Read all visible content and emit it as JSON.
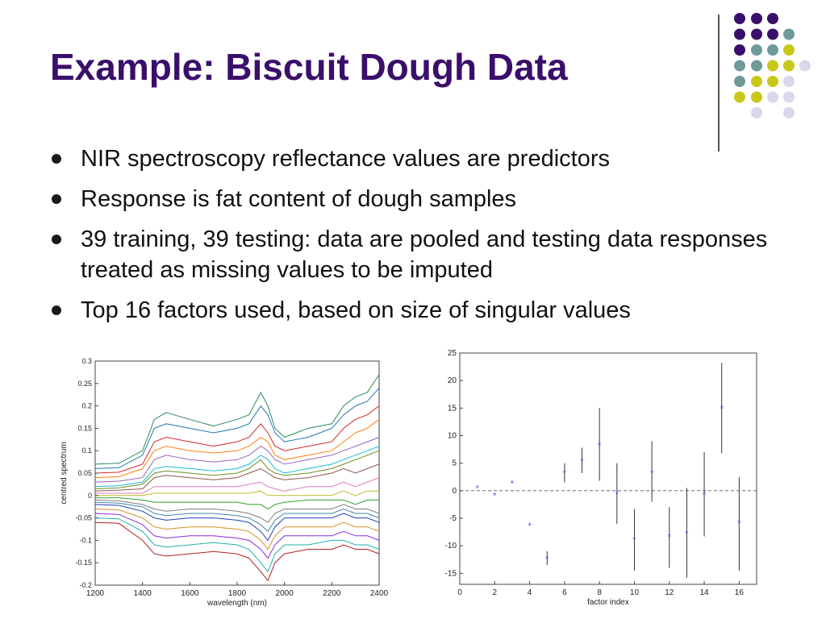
{
  "slide": {
    "title": "Example: Biscuit Dough Data",
    "bullets": [
      "NIR spectroscopy reflectance values are predictors",
      "Response is fat content of dough samples",
      "39 training, 39 testing: data are pooled and testing data responses treated as missing values to be imputed",
      "Top 16 factors used, based on size of singular values"
    ],
    "title_color": "#3a0f6b"
  },
  "decoration": {
    "dot_colors": [
      "#3a0f6b",
      "#6f9a9a",
      "#c8c81a",
      "#d8d8ea"
    ]
  },
  "chart_data": [
    {
      "type": "line",
      "title": "",
      "xlabel": "wavelength (nm)",
      "ylabel": "centred spectrum",
      "xlim": [
        1200,
        2400
      ],
      "ylim": [
        -0.2,
        0.3
      ],
      "x_ticks": [
        "1200",
        "1400",
        "1600",
        "1800",
        "2000",
        "2200",
        "2400"
      ],
      "y_ticks": [
        "0.3",
        "0.25",
        "0.2",
        "0.15",
        "0.1",
        "0.05",
        "0",
        "-0.05",
        "-0.1",
        "-0.15",
        "-0.2"
      ],
      "x": [
        1200,
        1300,
        1400,
        1450,
        1500,
        1600,
        1700,
        1800,
        1850,
        1900,
        1930,
        1960,
        2000,
        2100,
        2200,
        2250,
        2300,
        2350,
        2400
      ],
      "series": [
        {
          "values": [
            0.07,
            0.072,
            0.1,
            0.17,
            0.185,
            0.17,
            0.155,
            0.17,
            0.18,
            0.23,
            0.2,
            0.15,
            0.13,
            0.15,
            0.16,
            0.2,
            0.22,
            0.23,
            0.27
          ]
        },
        {
          "values": [
            0.06,
            0.062,
            0.09,
            0.15,
            0.16,
            0.15,
            0.14,
            0.15,
            0.16,
            0.2,
            0.18,
            0.14,
            0.12,
            0.13,
            0.15,
            0.18,
            0.2,
            0.21,
            0.24
          ]
        },
        {
          "values": [
            0.05,
            0.052,
            0.07,
            0.12,
            0.13,
            0.12,
            0.11,
            0.12,
            0.13,
            0.16,
            0.14,
            0.11,
            0.1,
            0.11,
            0.12,
            0.15,
            0.17,
            0.18,
            0.2
          ]
        },
        {
          "values": [
            0.04,
            0.042,
            0.06,
            0.1,
            0.11,
            0.1,
            0.095,
            0.1,
            0.11,
            0.13,
            0.12,
            0.09,
            0.08,
            0.09,
            0.1,
            0.12,
            0.14,
            0.15,
            0.17
          ]
        },
        {
          "values": [
            0.03,
            0.032,
            0.04,
            0.08,
            0.09,
            0.08,
            0.075,
            0.08,
            0.09,
            0.11,
            0.1,
            0.08,
            0.07,
            0.08,
            0.09,
            0.1,
            0.11,
            0.12,
            0.13
          ]
        },
        {
          "values": [
            0.02,
            0.022,
            0.03,
            0.06,
            0.065,
            0.06,
            0.055,
            0.06,
            0.07,
            0.09,
            0.08,
            0.06,
            0.05,
            0.06,
            0.07,
            0.08,
            0.09,
            0.1,
            0.11
          ]
        },
        {
          "values": [
            0.01,
            0.012,
            0.015,
            0.04,
            0.045,
            0.04,
            0.035,
            0.04,
            0.05,
            0.06,
            0.05,
            0.04,
            0.035,
            0.04,
            0.05,
            0.06,
            0.05,
            0.06,
            0.07
          ]
        },
        {
          "values": [
            0.005,
            0.005,
            0.005,
            0.02,
            0.02,
            0.02,
            0.02,
            0.02,
            0.025,
            0.03,
            0.02,
            0.015,
            0.01,
            0.02,
            0.02,
            0.03,
            0.02,
            0.03,
            0.04
          ]
        },
        {
          "values": [
            0,
            0,
            0,
            0.005,
            0.005,
            0.005,
            0.005,
            0.005,
            0.005,
            0.01,
            0,
            0,
            0,
            0,
            0,
            0.01,
            0,
            0.01,
            0.01
          ]
        },
        {
          "values": [
            -0.005,
            -0.005,
            -0.01,
            -0.015,
            -0.015,
            -0.015,
            -0.015,
            -0.015,
            -0.02,
            -0.02,
            -0.03,
            -0.02,
            -0.015,
            -0.01,
            -0.01,
            -0.01,
            -0.02,
            -0.01,
            -0.01
          ]
        },
        {
          "values": [
            -0.01,
            -0.012,
            -0.02,
            -0.03,
            -0.035,
            -0.03,
            -0.03,
            -0.035,
            -0.04,
            -0.05,
            -0.06,
            -0.04,
            -0.03,
            -0.03,
            -0.03,
            -0.02,
            -0.03,
            -0.03,
            -0.04
          ]
        },
        {
          "values": [
            -0.02,
            -0.022,
            -0.035,
            -0.05,
            -0.055,
            -0.05,
            -0.05,
            -0.055,
            -0.06,
            -0.08,
            -0.1,
            -0.07,
            -0.05,
            -0.05,
            -0.05,
            -0.04,
            -0.05,
            -0.05,
            -0.06
          ]
        },
        {
          "values": [
            -0.03,
            -0.032,
            -0.05,
            -0.07,
            -0.075,
            -0.07,
            -0.07,
            -0.075,
            -0.08,
            -0.1,
            -0.12,
            -0.09,
            -0.07,
            -0.07,
            -0.07,
            -0.06,
            -0.07,
            -0.07,
            -0.08
          ]
        },
        {
          "values": [
            -0.04,
            -0.042,
            -0.065,
            -0.09,
            -0.095,
            -0.09,
            -0.09,
            -0.095,
            -0.1,
            -0.12,
            -0.14,
            -0.11,
            -0.09,
            -0.09,
            -0.09,
            -0.08,
            -0.09,
            -0.09,
            -0.1
          ]
        },
        {
          "values": [
            -0.05,
            -0.052,
            -0.08,
            -0.11,
            -0.115,
            -0.11,
            -0.105,
            -0.11,
            -0.12,
            -0.15,
            -0.17,
            -0.13,
            -0.11,
            -0.11,
            -0.1,
            -0.1,
            -0.11,
            -0.11,
            -0.12
          ]
        },
        {
          "values": [
            -0.06,
            -0.062,
            -0.1,
            -0.13,
            -0.135,
            -0.13,
            -0.125,
            -0.13,
            -0.14,
            -0.17,
            -0.19,
            -0.15,
            -0.13,
            -0.12,
            -0.12,
            -0.11,
            -0.12,
            -0.12,
            -0.13
          ]
        },
        {
          "values": [
            0.015,
            0.017,
            0.025,
            0.05,
            0.055,
            0.05,
            0.045,
            0.05,
            0.06,
            0.08,
            0.06,
            0.05,
            0.045,
            0.05,
            0.06,
            0.07,
            0.08,
            0.09,
            0.1
          ]
        },
        {
          "values": [
            -0.015,
            -0.017,
            -0.025,
            -0.04,
            -0.045,
            -0.04,
            -0.04,
            -0.045,
            -0.05,
            -0.065,
            -0.08,
            -0.055,
            -0.04,
            -0.04,
            -0.04,
            -0.03,
            -0.04,
            -0.04,
            -0.05
          ]
        }
      ]
    },
    {
      "type": "scatter",
      "title": "",
      "xlabel": "factor index",
      "ylabel": "",
      "xlim": [
        0,
        17
      ],
      "ylim": [
        -17,
        25
      ],
      "x_ticks": [
        "0",
        "2",
        "4",
        "6",
        "8",
        "10",
        "12",
        "14",
        "16"
      ],
      "y_ticks": [
        "25",
        "20",
        "15",
        "10",
        "5",
        "0",
        "-5",
        "-10",
        "-15"
      ],
      "reference_line": 0,
      "x": [
        1,
        2,
        3,
        4,
        5,
        6,
        7,
        8,
        9,
        10,
        11,
        12,
        13,
        14,
        15,
        16
      ],
      "values": [
        0.5,
        -0.8,
        1.4,
        -6.3,
        -12.3,
        3.3,
        5.5,
        8.3,
        -0.5,
        -8.8,
        3.3,
        -8.3,
        -7.7,
        -0.7,
        15,
        -5.8
      ],
      "error_low": [
        0.5,
        -0.8,
        1.4,
        -6.3,
        -13.5,
        1.5,
        3.2,
        1.8,
        -6,
        -14.5,
        -2,
        -14,
        -15.8,
        -8.3,
        6.8,
        -14.5
      ],
      "error_high": [
        0.5,
        -0.8,
        1.4,
        -6.3,
        -11,
        5,
        7.8,
        15,
        5,
        -3.3,
        9,
        -3,
        0.5,
        7,
        23.2,
        2.5
      ]
    }
  ]
}
